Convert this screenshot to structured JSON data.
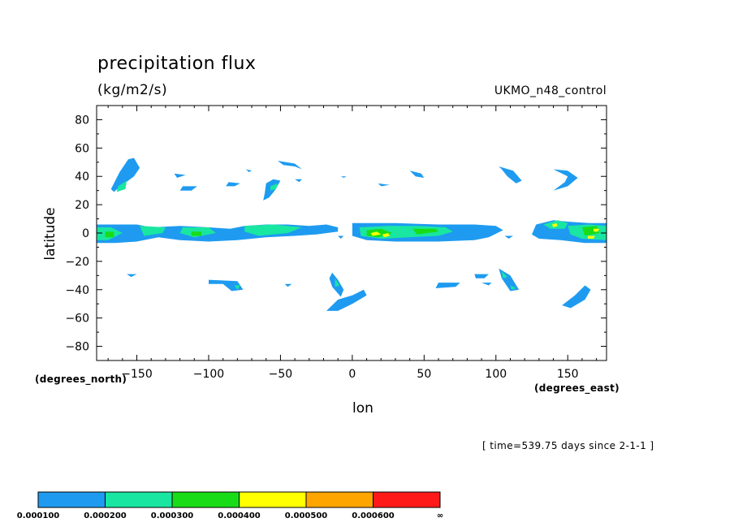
{
  "chart_data": {
    "type": "heatmap",
    "title": "precipitation flux",
    "units": "(kg/m2/s)",
    "model": "UKMO_n48_control",
    "xlabel": "lon",
    "ylabel": "latitude",
    "x_units": "(degrees_east)",
    "y_units": "(degrees_north)",
    "time_note": "[ time=539.75 days since 2-1-1 ]",
    "xlim": [
      -178,
      177
    ],
    "ylim": [
      -90,
      90
    ],
    "x_ticks": [
      -150,
      -100,
      -50,
      0,
      50,
      100,
      150
    ],
    "y_ticks": [
      -80,
      -60,
      -40,
      -20,
      0,
      20,
      40,
      60,
      80
    ],
    "legend": {
      "colors": [
        "#1e9bf0",
        "#19e6a0",
        "#19dc19",
        "#ffff00",
        "#ffa500",
        "#ff1a1a"
      ],
      "labels": [
        "0.000100",
        "0.000200",
        "0.000300",
        "0.000400",
        "0.000500",
        "0.000600",
        "∞"
      ]
    },
    "regions": [
      {
        "level": 1,
        "pts": [
          [
            -178,
            6
          ],
          [
            -150,
            6
          ],
          [
            -140,
            4
          ],
          [
            -120,
            5
          ],
          [
            -100,
            4
          ],
          [
            -85,
            3
          ],
          [
            -75,
            5
          ],
          [
            -60,
            6
          ],
          [
            -45,
            6
          ],
          [
            -30,
            5
          ],
          [
            -18,
            6
          ],
          [
            -10,
            4
          ],
          [
            -10,
            1
          ],
          [
            -25,
            -1
          ],
          [
            -40,
            -2
          ],
          [
            -60,
            -3
          ],
          [
            -80,
            -5
          ],
          [
            -100,
            -6
          ],
          [
            -120,
            -5
          ],
          [
            -135,
            -3
          ],
          [
            -150,
            -6
          ],
          [
            -165,
            -7
          ],
          [
            -178,
            -7
          ]
        ]
      },
      {
        "level": 2,
        "pts": [
          [
            -178,
            4
          ],
          [
            -168,
            4
          ],
          [
            -160,
            0
          ],
          [
            -170,
            -5
          ],
          [
            -178,
            -5
          ]
        ]
      },
      {
        "level": 2,
        "pts": [
          [
            -148,
            5
          ],
          [
            -130,
            4
          ],
          [
            -132,
            0
          ],
          [
            -145,
            -2
          ]
        ]
      },
      {
        "level": 2,
        "pts": [
          [
            -118,
            4
          ],
          [
            -100,
            4
          ],
          [
            -95,
            0
          ],
          [
            -110,
            -3
          ],
          [
            -120,
            0
          ]
        ]
      },
      {
        "level": 2,
        "pts": [
          [
            -75,
            5
          ],
          [
            -55,
            6
          ],
          [
            -35,
            4
          ],
          [
            -45,
            0
          ],
          [
            -65,
            -2
          ],
          [
            -75,
            1
          ]
        ]
      },
      {
        "level": 3,
        "pts": [
          [
            -112,
            1
          ],
          [
            -105,
            1
          ],
          [
            -105,
            -2
          ],
          [
            -112,
            -2
          ]
        ]
      },
      {
        "level": 3,
        "pts": [
          [
            -172,
            1
          ],
          [
            -166,
            1
          ],
          [
            -166,
            -3
          ],
          [
            -172,
            -3
          ]
        ]
      },
      {
        "level": 1,
        "pts": [
          [
            0,
            7
          ],
          [
            30,
            7
          ],
          [
            60,
            6
          ],
          [
            85,
            6
          ],
          [
            100,
            5
          ],
          [
            105,
            2
          ],
          [
            95,
            -3
          ],
          [
            85,
            -5
          ],
          [
            60,
            -6
          ],
          [
            30,
            -6
          ],
          [
            10,
            -5
          ],
          [
            0,
            -2
          ]
        ]
      },
      {
        "level": 2,
        "pts": [
          [
            5,
            4
          ],
          [
            25,
            5
          ],
          [
            45,
            5
          ],
          [
            65,
            4
          ],
          [
            70,
            1
          ],
          [
            60,
            -2
          ],
          [
            40,
            -3
          ],
          [
            20,
            -4
          ],
          [
            6,
            -2
          ]
        ]
      },
      {
        "level": 3,
        "pts": [
          [
            10,
            2
          ],
          [
            20,
            3
          ],
          [
            28,
            0
          ],
          [
            18,
            -3
          ],
          [
            10,
            -2
          ]
        ]
      },
      {
        "level": 3,
        "pts": [
          [
            42,
            3
          ],
          [
            58,
            3
          ],
          [
            60,
            1
          ],
          [
            45,
            -1
          ]
        ]
      },
      {
        "level": 4,
        "pts": [
          [
            13,
            0
          ],
          [
            17,
            1
          ],
          [
            20,
            -1
          ],
          [
            14,
            -2
          ]
        ]
      },
      {
        "level": 4,
        "pts": [
          [
            21,
            -1
          ],
          [
            25,
            0
          ],
          [
            26,
            -2
          ],
          [
            22,
            -3
          ]
        ]
      },
      {
        "level": 1,
        "pts": [
          [
            128,
            6
          ],
          [
            140,
            9
          ],
          [
            150,
            8
          ],
          [
            165,
            7
          ],
          [
            177,
            7
          ],
          [
            177,
            -7
          ],
          [
            162,
            -7
          ],
          [
            145,
            -5
          ],
          [
            130,
            -4
          ],
          [
            125,
            -1
          ]
        ]
      },
      {
        "level": 2,
        "pts": [
          [
            133,
            6
          ],
          [
            143,
            9
          ],
          [
            150,
            7
          ],
          [
            148,
            3
          ],
          [
            138,
            3
          ]
        ]
      },
      {
        "level": 2,
        "pts": [
          [
            150,
            5
          ],
          [
            165,
            6
          ],
          [
            177,
            5
          ],
          [
            177,
            -5
          ],
          [
            160,
            -4
          ],
          [
            152,
            -1
          ]
        ]
      },
      {
        "level": 3,
        "pts": [
          [
            160,
            4
          ],
          [
            170,
            5
          ],
          [
            172,
            0
          ],
          [
            162,
            -2
          ]
        ]
      },
      {
        "level": 4,
        "pts": [
          [
            139,
            6
          ],
          [
            142,
            7
          ],
          [
            143,
            5
          ],
          [
            140,
            4
          ]
        ]
      },
      {
        "level": 4,
        "pts": [
          [
            164,
            -2
          ],
          [
            169,
            -2
          ],
          [
            168,
            -4
          ],
          [
            164,
            -4
          ]
        ]
      },
      {
        "level": 4,
        "pts": [
          [
            168,
            3
          ],
          [
            172,
            3
          ],
          [
            171,
            1
          ],
          [
            168,
            1
          ]
        ]
      },
      {
        "level": 1,
        "pts": [
          [
            -162,
            43
          ],
          [
            -156,
            52
          ],
          [
            -152,
            53
          ],
          [
            -148,
            46
          ],
          [
            -152,
            40
          ],
          [
            -160,
            34
          ],
          [
            -166,
            29
          ],
          [
            -168,
            31
          ]
        ]
      },
      {
        "level": 2,
        "pts": [
          [
            -163,
            33
          ],
          [
            -157,
            37
          ],
          [
            -158,
            31
          ],
          [
            -164,
            29
          ]
        ]
      },
      {
        "level": 1,
        "pts": [
          [
            -60,
            35
          ],
          [
            -55,
            38
          ],
          [
            -50,
            37
          ],
          [
            -54,
            30
          ],
          [
            -58,
            25
          ],
          [
            -62,
            23
          ],
          [
            -61,
            28
          ]
        ]
      },
      {
        "level": 2,
        "pts": [
          [
            -57,
            33
          ],
          [
            -52,
            35
          ],
          [
            -53,
            31
          ],
          [
            -57,
            30
          ]
        ]
      },
      {
        "level": 1,
        "pts": [
          [
            -52,
            51
          ],
          [
            -40,
            49
          ],
          [
            -35,
            45
          ],
          [
            -40,
            47
          ],
          [
            -48,
            48
          ]
        ]
      },
      {
        "level": 1,
        "pts": [
          [
            40,
            44
          ],
          [
            48,
            42
          ],
          [
            50,
            39
          ],
          [
            44,
            40
          ]
        ]
      },
      {
        "level": 1,
        "pts": [
          [
            102,
            47
          ],
          [
            112,
            44
          ],
          [
            118,
            37
          ],
          [
            114,
            35
          ],
          [
            108,
            40
          ],
          [
            104,
            45
          ]
        ]
      },
      {
        "level": 1,
        "pts": [
          [
            140,
            45
          ],
          [
            150,
            44
          ],
          [
            157,
            39
          ],
          [
            150,
            33
          ],
          [
            140,
            30
          ],
          [
            148,
            36
          ],
          [
            150,
            40
          ]
        ]
      },
      {
        "level": 1,
        "pts": [
          [
            -86,
            36
          ],
          [
            -78,
            35
          ],
          [
            -82,
            33
          ],
          [
            -88,
            33
          ]
        ]
      },
      {
        "level": 1,
        "pts": [
          [
            -118,
            33
          ],
          [
            -108,
            33
          ],
          [
            -112,
            30
          ],
          [
            -120,
            30
          ]
        ]
      },
      {
        "level": 1,
        "pts": [
          [
            -124,
            42
          ],
          [
            -116,
            41
          ],
          [
            -122,
            39
          ]
        ]
      },
      {
        "level": 1,
        "pts": [
          [
            -14,
            -28
          ],
          [
            -10,
            -33
          ],
          [
            -6,
            -40
          ],
          [
            -8,
            -45
          ],
          [
            -14,
            -38
          ],
          [
            -16,
            -32
          ]
        ]
      },
      {
        "level": 2,
        "pts": [
          [
            -12,
            -32
          ],
          [
            -9,
            -37
          ],
          [
            -12,
            -38
          ]
        ]
      },
      {
        "level": 1,
        "pts": [
          [
            -10,
            -47
          ],
          [
            0,
            -44
          ],
          [
            8,
            -40
          ],
          [
            10,
            -44
          ],
          [
            0,
            -50
          ],
          [
            -10,
            -55
          ],
          [
            -18,
            -55
          ]
        ]
      },
      {
        "level": 1,
        "pts": [
          [
            -100,
            -33
          ],
          [
            -80,
            -34
          ],
          [
            -76,
            -40
          ],
          [
            -84,
            -41
          ],
          [
            -90,
            -36
          ],
          [
            -100,
            -36
          ]
        ]
      },
      {
        "level": 2,
        "pts": [
          [
            -82,
            -37
          ],
          [
            -78,
            -37
          ],
          [
            -80,
            -40
          ]
        ]
      },
      {
        "level": 1,
        "pts": [
          [
            102,
            -25
          ],
          [
            110,
            -30
          ],
          [
            116,
            -40
          ],
          [
            110,
            -41
          ],
          [
            104,
            -32
          ]
        ]
      },
      {
        "level": 2,
        "pts": [
          [
            104,
            -27
          ],
          [
            108,
            -31
          ],
          [
            105,
            -32
          ]
        ]
      },
      {
        "level": 2,
        "pts": [
          [
            110,
            -37
          ],
          [
            114,
            -39
          ],
          [
            111,
            -40
          ]
        ]
      },
      {
        "level": 1,
        "pts": [
          [
            60,
            -35
          ],
          [
            75,
            -35
          ],
          [
            72,
            -38
          ],
          [
            58,
            -39
          ]
        ]
      },
      {
        "level": 1,
        "pts": [
          [
            85,
            -29
          ],
          [
            95,
            -29
          ],
          [
            92,
            -32
          ],
          [
            86,
            -32
          ]
        ]
      },
      {
        "level": 1,
        "pts": [
          [
            90,
            -35
          ],
          [
            97,
            -35
          ],
          [
            95,
            -37
          ]
        ]
      },
      {
        "level": 1,
        "pts": [
          [
            162,
            -37
          ],
          [
            166,
            -40
          ],
          [
            162,
            -47
          ],
          [
            152,
            -53
          ],
          [
            146,
            -51
          ],
          [
            155,
            -44
          ]
        ]
      },
      {
        "level": 1,
        "pts": [
          [
            -157,
            -29
          ],
          [
            -150,
            -29
          ],
          [
            -154,
            -31
          ]
        ]
      },
      {
        "level": 1,
        "pts": [
          [
            -47,
            -36
          ],
          [
            -42,
            -36
          ],
          [
            -45,
            -38
          ]
        ]
      },
      {
        "level": 1,
        "pts": [
          [
            -74,
            45
          ],
          [
            -70,
            44
          ],
          [
            -72,
            43
          ]
        ]
      },
      {
        "level": 1,
        "pts": [
          [
            -8,
            40
          ],
          [
            -4,
            40
          ],
          [
            -6,
            39
          ]
        ]
      },
      {
        "level": 1,
        "pts": [
          [
            18,
            35
          ],
          [
            26,
            34
          ],
          [
            20,
            33
          ]
        ]
      },
      {
        "level": 1,
        "pts": [
          [
            -34,
            2
          ],
          [
            -28,
            1
          ],
          [
            -31,
            0
          ]
        ]
      },
      {
        "level": 1,
        "pts": [
          [
            -10,
            -2
          ],
          [
            -6,
            -2
          ],
          [
            -8,
            -4
          ]
        ]
      },
      {
        "level": 1,
        "pts": [
          [
            106,
            -2
          ],
          [
            112,
            -2
          ],
          [
            109,
            -4
          ]
        ]
      },
      {
        "level": 1,
        "pts": [
          [
            -40,
            38
          ],
          [
            -35,
            38
          ],
          [
            -37,
            36
          ]
        ]
      }
    ]
  }
}
